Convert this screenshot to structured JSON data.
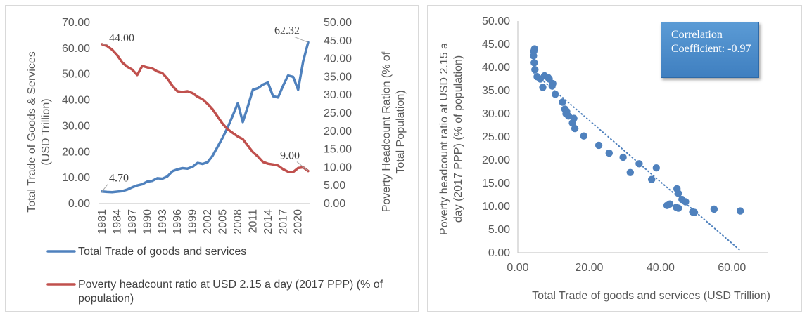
{
  "chart_data": [
    {
      "type": "line",
      "dual_axis": true,
      "x": [
        "1981",
        "1982",
        "1983",
        "1984",
        "1985",
        "1986",
        "1987",
        "1988",
        "1989",
        "1990",
        "1991",
        "1992",
        "1993",
        "1994",
        "1995",
        "1996",
        "1997",
        "1998",
        "1999",
        "2000",
        "2001",
        "2002",
        "2003",
        "2004",
        "2005",
        "2006",
        "2007",
        "2008",
        "2009",
        "2010",
        "2011",
        "2012",
        "2013",
        "2014",
        "2015",
        "2016",
        "2017",
        "2018",
        "2019",
        "2020",
        "2021",
        "2022"
      ],
      "x_tick_labels": [
        "1981",
        "1984",
        "1987",
        "1990",
        "1993",
        "1996",
        "1999",
        "2002",
        "2005",
        "2008",
        "2011",
        "2014",
        "2017",
        "2020"
      ],
      "series": [
        {
          "name": "Total Trade of goods and services",
          "axis": "left",
          "color": "#4f81bd",
          "values": [
            4.7,
            4.5,
            4.4,
            4.6,
            4.8,
            5.4,
            6.3,
            7.0,
            7.5,
            8.5,
            8.8,
            9.8,
            9.6,
            10.5,
            12.5,
            13.2,
            13.7,
            13.5,
            14.2,
            15.7,
            15.3,
            16.0,
            18.5,
            22.0,
            25.5,
            29.5,
            34.0,
            38.8,
            31.5,
            37.5,
            44.0,
            44.6,
            46.0,
            46.8,
            41.5,
            41.0,
            45.5,
            49.5,
            49.0,
            44.0,
            55.0,
            62.32
          ]
        },
        {
          "name": "Poverty headcount ratio at USD 2.15 a day (2017 PPP) (% of population)",
          "axis": "right",
          "color": "#c0504d",
          "values": [
            44.0,
            43.5,
            42.5,
            41.0,
            39.0,
            37.8,
            37.0,
            35.5,
            38.0,
            37.6,
            37.3,
            36.5,
            36.0,
            34.5,
            32.5,
            31.0,
            30.8,
            31.0,
            30.5,
            29.5,
            28.8,
            27.5,
            26.0,
            24.0,
            22.0,
            20.5,
            19.5,
            18.5,
            17.8,
            16.0,
            14.2,
            13.0,
            11.5,
            11.0,
            10.8,
            10.5,
            9.5,
            8.8,
            8.7,
            9.8,
            10.0,
            9.0
          ]
        }
      ],
      "data_labels": [
        {
          "series": 0,
          "index": 0,
          "text": "4.70"
        },
        {
          "series": 1,
          "index": 0,
          "text": "44.00"
        },
        {
          "series": 0,
          "index": 41,
          "text": "62.32"
        },
        {
          "series": 1,
          "index": 41,
          "text": "9.00"
        }
      ],
      "y_left": {
        "label": "Total Trade of Goods & Services (USD Trillion)",
        "min": 0,
        "max": 70,
        "step": 10,
        "tick_labels": [
          "0.00",
          "10.00",
          "20.00",
          "30.00",
          "40.00",
          "50.00",
          "60.00",
          "70.00"
        ]
      },
      "y_right": {
        "label": "Poverty Headcount Ration (% of Total Population)",
        "min": 0,
        "max": 50,
        "step": 5,
        "tick_labels": [
          "0.00",
          "5.00",
          "10.00",
          "15.00",
          "20.00",
          "25.00",
          "30.00",
          "35.00",
          "40.00",
          "45.00",
          "50.00"
        ]
      },
      "legend_position": "bottom",
      "grid": false
    },
    {
      "type": "scatter",
      "x": [
        4.7,
        4.5,
        4.4,
        4.6,
        4.8,
        5.4,
        6.3,
        7.0,
        7.5,
        8.5,
        8.8,
        9.8,
        9.6,
        10.5,
        12.5,
        13.2,
        13.7,
        13.5,
        14.2,
        15.7,
        15.3,
        16.0,
        18.5,
        22.7,
        25.6,
        29.5,
        34.0,
        38.8,
        31.5,
        37.5,
        41.8,
        42.6,
        44.6,
        45.0,
        44.4,
        45.0,
        46.0,
        47.0,
        49.0,
        49.5,
        55.0,
        62.32
      ],
      "y": [
        44.0,
        43.5,
        42.5,
        41.0,
        39.5,
        38.0,
        37.5,
        35.7,
        38.2,
        37.8,
        37.5,
        36.5,
        36.0,
        34.2,
        32.5,
        31.0,
        30.5,
        30.0,
        29.5,
        29.0,
        28.0,
        26.8,
        25.2,
        23.2,
        21.5,
        20.6,
        19.2,
        18.3,
        17.3,
        15.8,
        10.2,
        10.5,
        13.8,
        12.8,
        9.8,
        9.6,
        11.5,
        11.0,
        8.8,
        8.7,
        9.4,
        9.0
      ],
      "marker_color": "#4f81bd",
      "trendline": {
        "type": "linear",
        "style": "dotted",
        "color": "#4f81bd",
        "from": [
          4.4,
          38.9
        ],
        "to": [
          62.32,
          0.5
        ]
      },
      "annotation": "Correlation Coefficient: -0.97",
      "xlabel": "Total Trade of goods and services (USD Trillion)",
      "ylabel": "Poverty headcount ratio at USD 2.15 a day (2017 PPP) (% of population)",
      "xlim": [
        0,
        70
      ],
      "ylim": [
        0,
        50
      ],
      "x_tick_labels": [
        "0.00",
        "20.00",
        "40.00",
        "60.00"
      ],
      "y_tick_labels": [
        "0.00",
        "5.00",
        "10.00",
        "15.00",
        "20.00",
        "25.00",
        "30.00",
        "35.00",
        "40.00",
        "45.00",
        "50.00"
      ],
      "grid": false
    }
  ],
  "ui": {
    "legend": [
      "Total Trade of goods and services",
      "Poverty headcount ratio at USD 2.15 a day (2017 PPP) (% of population)"
    ],
    "correlation_label": "Correlation Coefficient: -0.97"
  }
}
